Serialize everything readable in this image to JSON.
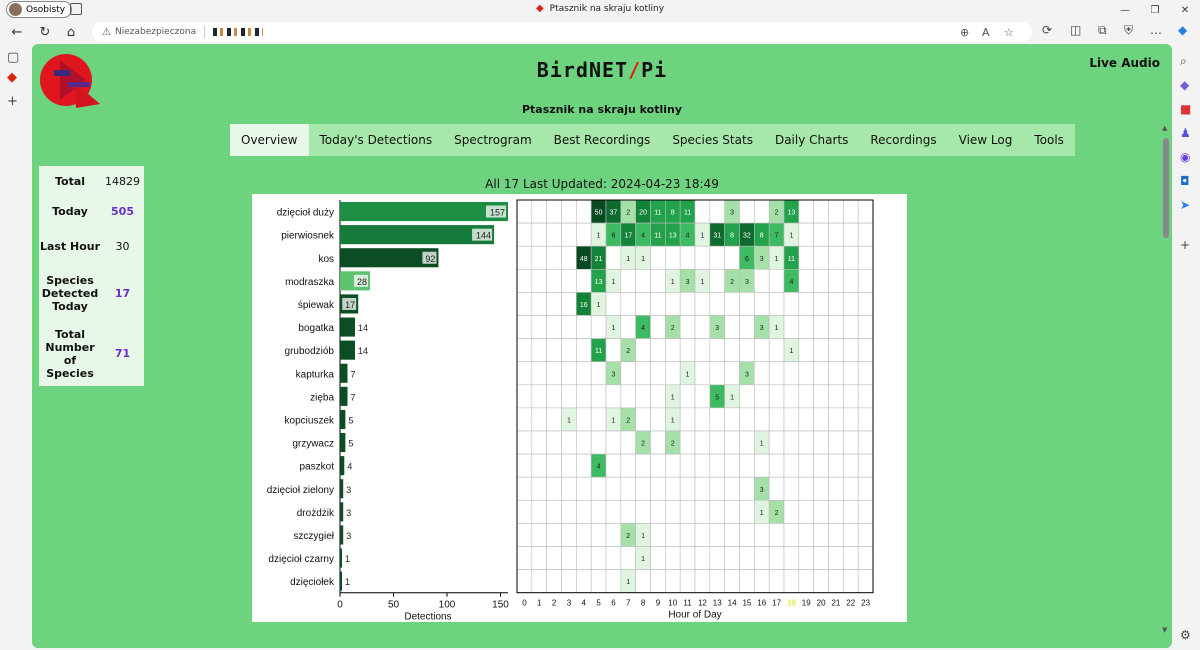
{
  "browser": {
    "profile_label": "Osobisty",
    "window_title": "Ptasznik na skraju kotliny",
    "security_label": "Niezabezpieczona"
  },
  "header": {
    "brand_left": "BirdNET",
    "brand_right": "Pi",
    "live_audio": "Live Audio",
    "site_name": "Ptasznik na skraju kotliny"
  },
  "nav": {
    "items": [
      "Overview",
      "Today's Detections",
      "Spectrogram",
      "Best Recordings",
      "Species Stats",
      "Daily Charts",
      "Recordings",
      "View Log",
      "Tools"
    ],
    "active": "Overview"
  },
  "stats": [
    {
      "label": "Total",
      "value": "14829",
      "highlight": false
    },
    {
      "label": "Today",
      "value": "505",
      "highlight": true
    },
    {
      "label": "Last Hour",
      "value": "30",
      "highlight": false
    },
    {
      "label": "Species Detected Today",
      "value": "17",
      "highlight": true
    },
    {
      "label": "Total Number of Species",
      "value": "71",
      "highlight": true
    }
  ],
  "updated_text": "All 17 Last Updated: 2024-04-23 18:49",
  "chart_data": {
    "type": "bar+heatmap",
    "categories": [
      "dzięcioł duży",
      "pierwiosnek",
      "kos",
      "modraszka",
      "śpiewak",
      "bogatka",
      "grubodziób",
      "kapturka",
      "zięba",
      "kopciuszek",
      "grzywacz",
      "paszkot",
      "dzięcioł zielony",
      "drożdżik",
      "szczygieł",
      "dzięcioł czarny",
      "dzięciołek"
    ],
    "values": [
      157,
      144,
      92,
      28,
      17,
      14,
      14,
      7,
      7,
      5,
      5,
      4,
      3,
      3,
      3,
      1,
      1
    ],
    "xlabel": "Detections",
    "xticks": [
      0,
      50,
      100,
      150
    ],
    "xlim": [
      0,
      157
    ],
    "heatmap_xlabel": "Hour of Day",
    "hours": [
      0,
      1,
      2,
      3,
      4,
      5,
      6,
      7,
      8,
      9,
      10,
      11,
      12,
      13,
      14,
      15,
      16,
      17,
      18,
      19,
      20,
      21,
      22,
      23
    ],
    "highlight_hour": 18,
    "hourly": [
      {
        "5": 50,
        "6": 37,
        "7": 2,
        "8": 20,
        "9": 11,
        "10": 8,
        "11": 11,
        "14": 3,
        "17": 2,
        "18": 13
      },
      {
        "5": 1,
        "6": 6,
        "7": 17,
        "8": 4,
        "9": 11,
        "10": 13,
        "11": 4,
        "12": 1,
        "13": 31,
        "14": 8,
        "15": 32,
        "16": 8,
        "17": 7,
        "18": 1
      },
      {
        "4": 48,
        "5": 21,
        "7": 1,
        "8": 1,
        "15": 6,
        "16": 3,
        "17": 1,
        "18": 11
      },
      {
        "5": 13,
        "6": 1,
        "10": 1,
        "11": 3,
        "12": 1,
        "14": 2,
        "15": 3,
        "18": 4
      },
      {
        "4": 16,
        "5": 1
      },
      {
        "6": 1,
        "8": 4,
        "10": 2,
        "13": 3,
        "16": 3,
        "17": 1
      },
      {
        "5": 11,
        "7": 2,
        "18": 1
      },
      {
        "6": 3,
        "11": 1,
        "15": 3
      },
      {
        "10": 1,
        "13": 5,
        "14": 1
      },
      {
        "3": 1,
        "6": 1,
        "7": 2,
        "10": 1
      },
      {
        "8": 2,
        "10": 2,
        "16": 1
      },
      {
        "5": 4
      },
      {
        "16": 3
      },
      {
        "16": 1,
        "17": 2
      },
      {
        "7": 2,
        "8": 1
      },
      {
        "8": 1
      },
      {
        "7": 1
      }
    ]
  }
}
